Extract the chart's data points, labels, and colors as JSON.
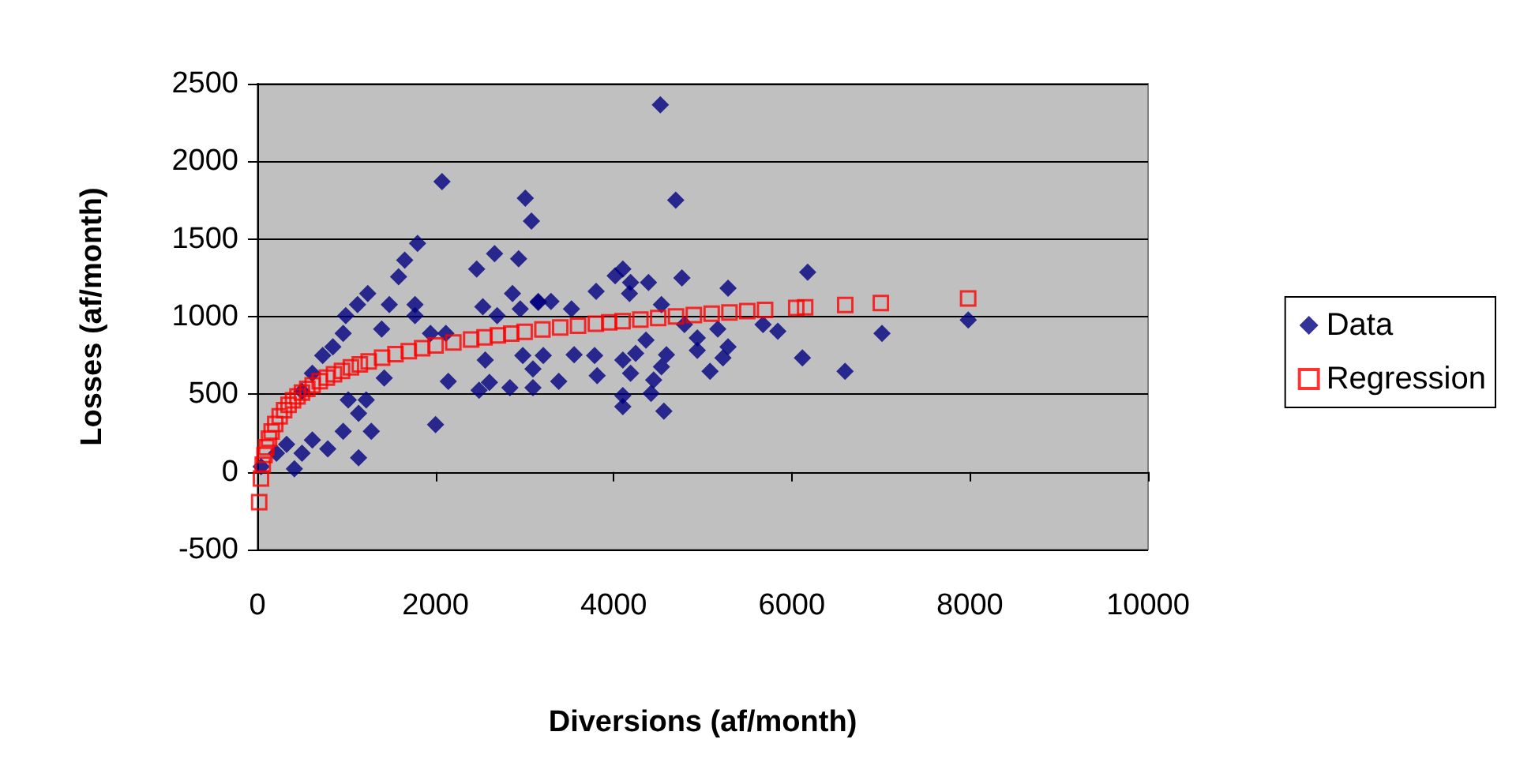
{
  "chart_data": {
    "type": "scatter",
    "xlabel": "Diversions (af/month)",
    "ylabel": "Losses (af/month)",
    "xlim": [
      0,
      10000
    ],
    "xticks": [
      0,
      2000,
      4000,
      6000,
      8000,
      10000
    ],
    "ylim": [
      -500,
      2500
    ],
    "yticks": [
      -500,
      0,
      500,
      1000,
      1500,
      2000,
      2500
    ],
    "grid": "y",
    "legend": "right",
    "series": [
      {
        "name": "Data",
        "color": "#000080",
        "marker": "diamond",
        "x": [
          2073,
          1798,
          1654,
          1585,
          1239,
          1124,
          992,
          1481,
          1770,
          1770,
          1943,
          2116,
          1395,
          963,
          847,
          733,
          617,
          501,
          1424,
          2143,
          2000,
          1020,
          1222,
          1136,
          1279,
          963,
          790,
          1136,
          415,
          501,
          617,
          328,
          214,
          41,
          2462,
          2663,
          2933,
          3008,
          3077,
          2531,
          2864,
          2951,
          3153,
          2692,
          2558,
          2489,
          2605,
          2835,
          3094,
          2980,
          4524,
          4697,
          4103,
          4017,
          4190,
          4391,
          4766,
          3803,
          4178,
          5284,
          6178,
          3296,
          3153,
          3526,
          4536,
          4795,
          5169,
          5677,
          5843,
          6119,
          4939,
          4593,
          4536,
          4363,
          4247,
          4103,
          3786,
          3815,
          3556,
          3210,
          3094,
          3383,
          4190,
          4103,
          4103,
          4420,
          4564,
          4449,
          5082,
          5227,
          4939,
          5284,
          6598,
          7013,
          7981
        ],
        "values": [
          1870,
          1472,
          1364,
          1257,
          1149,
          1077,
          1006,
          1077,
          1077,
          1006,
          892,
          892,
          920,
          892,
          806,
          749,
          635,
          520,
          605,
          583,
          305,
          463,
          463,
          377,
          262,
          262,
          148,
          91,
          20,
          120,
          206,
          177,
          120,
          34,
          1306,
          1406,
          1372,
          1763,
          1615,
          1063,
          1149,
          1049,
          1092,
          1006,
          720,
          526,
          577,
          543,
          543,
          749,
          2364,
          1750,
          1306,
          1263,
          1220,
          1220,
          1249,
          1163,
          1149,
          1183,
          1286,
          1098,
          1098,
          1049,
          1077,
          949,
          920,
          949,
          906,
          734,
          783,
          755,
          677,
          849,
          763,
          720,
          749,
          620,
          755,
          749,
          663,
          583,
          635,
          491,
          420,
          506,
          391,
          592,
          648,
          734,
          863,
          806,
          648,
          892,
          978
        ]
      },
      {
        "name": "Regression",
        "color": "#ff0000",
        "marker": "square",
        "x": [
          20,
          40,
          60,
          80,
          100,
          130,
          160,
          200,
          250,
          300,
          350,
          400,
          450,
          500,
          560,
          620,
          700,
          780,
          860,
          950,
          1050,
          1150,
          1250,
          1400,
          1550,
          1700,
          1850,
          2000,
          2200,
          2400,
          2550,
          2700,
          2850,
          3000,
          3200,
          3400,
          3600,
          3800,
          3950,
          4100,
          4300,
          4500,
          4700,
          4900,
          5100,
          5300,
          5500,
          5700,
          6050,
          6150,
          6600,
          7000,
          7980
        ],
        "values": [
          -195,
          -43,
          46,
          109,
          158,
          215,
          260,
          309,
          358,
          398,
          432,
          461,
          487,
          510,
          535,
          557,
          584,
          607,
          629,
          650,
          673,
          693,
          711,
          735,
          758,
          778,
          796,
          814,
          834,
          853,
          867,
          879,
          891,
          902,
          917,
          930,
          942,
          954,
          963,
          971,
          981,
          991,
          1001,
          1010,
          1019,
          1027,
          1035,
          1043,
          1056,
          1060,
          1075,
          1088,
          1117
        ]
      }
    ]
  }
}
